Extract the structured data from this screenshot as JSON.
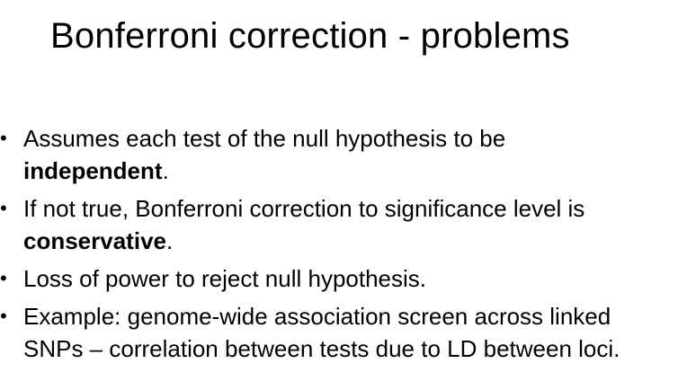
{
  "slide": {
    "title": "Bonferroni correction - problems",
    "bullets": [
      {
        "line1": "Assumes each test of the null hypothesis to be",
        "bold": "independent",
        "after": "."
      },
      {
        "line1": "If not true, Bonferroni correction to significance level is",
        "bold": "conservative",
        "after": "."
      },
      {
        "line1": "Loss of power to reject null hypothesis."
      },
      {
        "line1": "Example: genome-wide association screen across linked",
        "line2": "SNPs – correlation between tests due to LD between loci."
      }
    ],
    "bullet_glyph": "•"
  }
}
